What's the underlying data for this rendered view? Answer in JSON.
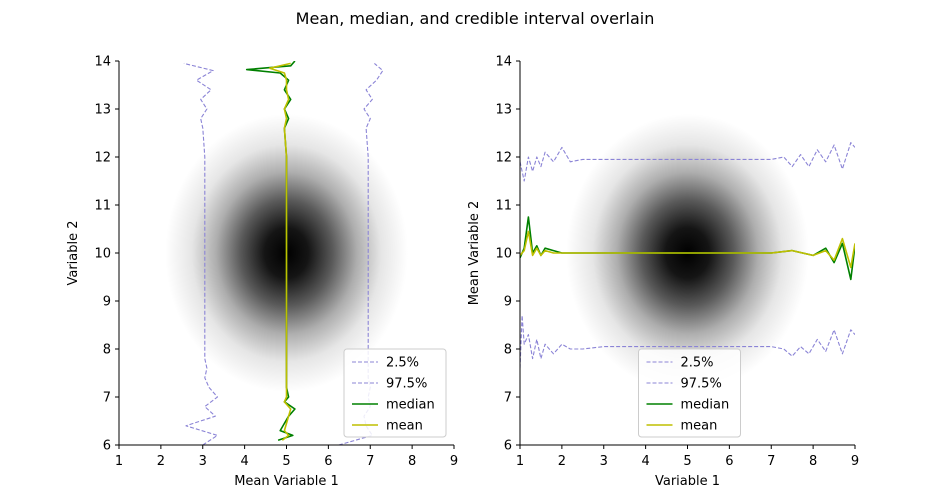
{
  "figure": {
    "title": "Mean, median, and credible interval overlain"
  },
  "colors": {
    "ci": "#8b84d6",
    "median": "#008000",
    "mean": "#bfbf00",
    "axis": "#000000",
    "heatmap": "#000000"
  },
  "chart_data": [
    {
      "type": "heatmap",
      "panel": "left",
      "xlabel": "Mean Variable 1",
      "ylabel": "Variable 2",
      "xlim": [
        1,
        9
      ],
      "ylim": [
        6,
        14
      ],
      "xticks": [
        "1",
        "2",
        "3",
        "4",
        "5",
        "6",
        "7",
        "8",
        "9"
      ],
      "yticks": [
        "6",
        "7",
        "8",
        "9",
        "10",
        "11",
        "12",
        "13",
        "14"
      ],
      "density": {
        "center": [
          5,
          10
        ],
        "sd": [
          1,
          1
        ]
      },
      "legend": {
        "location": "lower right",
        "entries": [
          "2.5%",
          "97.5%",
          "median",
          "mean"
        ]
      },
      "series": [
        {
          "name": "2.5%",
          "style": "dashed",
          "orientation": "vertical",
          "y": [
            6.0,
            6.2,
            6.4,
            6.6,
            6.8,
            7.0,
            7.2,
            7.4,
            7.6,
            7.8,
            8.0,
            9.0,
            10.0,
            11.0,
            12.0,
            12.6,
            12.8,
            13.0,
            13.2,
            13.4,
            13.6,
            13.8,
            13.95
          ],
          "x": [
            3.0,
            3.35,
            2.6,
            3.3,
            3.05,
            3.35,
            3.15,
            3.05,
            3.1,
            3.05,
            3.05,
            3.05,
            3.05,
            3.05,
            3.05,
            3.0,
            2.95,
            3.1,
            2.95,
            3.2,
            2.85,
            3.25,
            2.55
          ]
        },
        {
          "name": "97.5%",
          "style": "dashed",
          "orientation": "vertical",
          "y": [
            6.0,
            6.2,
            6.4,
            6.6,
            6.8,
            7.0,
            7.2,
            7.4,
            7.6,
            7.8,
            8.0,
            9.0,
            10.0,
            11.0,
            12.0,
            12.6,
            12.8,
            13.0,
            13.2,
            13.4,
            13.6,
            13.8,
            13.95
          ],
          "x": [
            6.25,
            7.05,
            6.9,
            6.85,
            7.0,
            6.95,
            7.0,
            6.95,
            6.95,
            6.95,
            6.95,
            6.95,
            6.95,
            6.95,
            6.95,
            6.9,
            7.0,
            6.85,
            7.05,
            6.9,
            7.15,
            7.3,
            7.1
          ]
        },
        {
          "name": "median",
          "style": "solid",
          "orientation": "vertical",
          "y": [
            6.1,
            6.2,
            6.3,
            6.45,
            6.6,
            6.75,
            6.9,
            7.0,
            7.2,
            7.5,
            8.0,
            9.0,
            10.0,
            11.0,
            12.0,
            12.6,
            12.8,
            13.0,
            13.2,
            13.4,
            13.6,
            13.75,
            13.82,
            13.9,
            14.0
          ],
          "x": [
            4.8,
            5.15,
            4.85,
            4.95,
            5.05,
            5.2,
            4.95,
            5.05,
            5.0,
            5.0,
            5.0,
            5.0,
            5.0,
            5.0,
            5.0,
            4.95,
            5.05,
            4.95,
            5.1,
            4.95,
            5.05,
            4.85,
            4.05,
            5.1,
            5.2
          ]
        },
        {
          "name": "mean",
          "style": "solid",
          "orientation": "vertical",
          "y": [
            6.1,
            6.2,
            6.3,
            6.45,
            6.6,
            6.75,
            6.9,
            7.0,
            7.2,
            7.5,
            8.0,
            9.0,
            10.0,
            11.0,
            12.0,
            12.6,
            12.8,
            13.0,
            13.2,
            13.4,
            13.6,
            13.75,
            13.85,
            13.95
          ],
          "x": [
            4.9,
            5.05,
            4.95,
            5.0,
            5.05,
            5.1,
            4.95,
            5.0,
            5.0,
            5.0,
            5.0,
            5.0,
            5.0,
            5.0,
            5.0,
            4.95,
            5.0,
            4.95,
            5.05,
            5.0,
            5.0,
            4.95,
            4.6,
            5.1
          ]
        }
      ]
    },
    {
      "type": "heatmap",
      "panel": "right",
      "xlabel": "Variable 1",
      "ylabel": "Mean Variable 2",
      "xlim": [
        1,
        9
      ],
      "ylim": [
        6,
        14
      ],
      "xticks": [
        "1",
        "2",
        "3",
        "4",
        "5",
        "6",
        "7",
        "8",
        "9"
      ],
      "yticks": [
        "6",
        "7",
        "8",
        "9",
        "10",
        "11",
        "12",
        "13",
        "14"
      ],
      "density": {
        "center": [
          5,
          10
        ],
        "sd": [
          1,
          1
        ]
      },
      "legend": {
        "location": "lower center",
        "entries": [
          "2.5%",
          "97.5%",
          "median",
          "mean"
        ]
      },
      "series": [
        {
          "name": "2.5%",
          "style": "dashed",
          "orientation": "horizontal",
          "x": [
            1.0,
            1.05,
            1.1,
            1.2,
            1.3,
            1.4,
            1.5,
            1.6,
            1.8,
            2.0,
            2.2,
            2.5,
            3.0,
            4.0,
            5.0,
            6.0,
            7.0,
            7.3,
            7.5,
            7.7,
            7.9,
            8.1,
            8.3,
            8.5,
            8.7,
            8.9,
            9.0
          ],
          "y": [
            7.6,
            8.7,
            8.1,
            8.3,
            7.8,
            8.2,
            7.8,
            8.1,
            7.9,
            8.1,
            8.0,
            8.0,
            8.05,
            8.05,
            8.05,
            8.05,
            8.05,
            8.0,
            7.85,
            8.05,
            7.9,
            8.2,
            7.95,
            8.4,
            7.9,
            8.4,
            8.3
          ]
        },
        {
          "name": "97.5%",
          "style": "dashed",
          "orientation": "horizontal",
          "x": [
            1.0,
            1.1,
            1.2,
            1.3,
            1.4,
            1.5,
            1.6,
            1.8,
            2.0,
            2.2,
            2.5,
            3.0,
            4.0,
            5.0,
            6.0,
            7.0,
            7.3,
            7.5,
            7.7,
            7.9,
            8.1,
            8.3,
            8.5,
            8.7,
            8.9,
            9.0
          ],
          "y": [
            11.9,
            11.5,
            12.0,
            11.7,
            12.0,
            11.8,
            12.1,
            11.9,
            12.2,
            11.9,
            11.95,
            11.95,
            11.95,
            11.95,
            11.95,
            11.95,
            12.0,
            11.8,
            12.05,
            11.8,
            12.15,
            11.9,
            12.25,
            11.75,
            12.3,
            12.2
          ]
        },
        {
          "name": "median",
          "style": "solid",
          "orientation": "horizontal",
          "x": [
            1.0,
            1.1,
            1.2,
            1.3,
            1.4,
            1.5,
            1.6,
            1.8,
            2.0,
            2.5,
            3.0,
            4.0,
            5.0,
            6.0,
            7.0,
            7.5,
            8.0,
            8.3,
            8.5,
            8.7,
            8.9,
            9.0
          ],
          "y": [
            9.9,
            10.1,
            10.75,
            10.0,
            10.15,
            9.95,
            10.1,
            10.05,
            10.0,
            10.0,
            10.0,
            10.0,
            10.0,
            10.0,
            10.0,
            10.05,
            9.95,
            10.1,
            9.8,
            10.2,
            9.45,
            10.15
          ]
        },
        {
          "name": "mean",
          "style": "solid",
          "orientation": "horizontal",
          "x": [
            1.0,
            1.1,
            1.2,
            1.3,
            1.4,
            1.5,
            1.6,
            1.8,
            2.0,
            2.5,
            3.0,
            4.0,
            5.0,
            6.0,
            7.0,
            7.5,
            8.0,
            8.3,
            8.5,
            8.7,
            8.9,
            9.0
          ],
          "y": [
            9.95,
            10.05,
            10.45,
            9.95,
            10.1,
            9.95,
            10.05,
            10.0,
            10.0,
            10.0,
            10.0,
            10.0,
            10.0,
            10.0,
            10.0,
            10.05,
            9.95,
            10.05,
            9.85,
            10.3,
            9.7,
            10.2
          ]
        }
      ]
    }
  ]
}
